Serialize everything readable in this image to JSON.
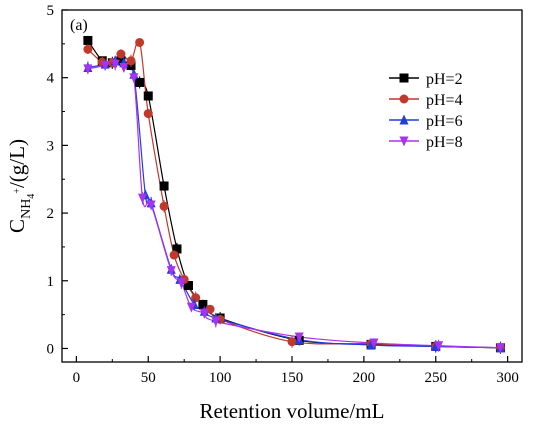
{
  "chart_data": {
    "type": "scatter",
    "panel_label": "(a)",
    "xlabel": "Retention volume/mL",
    "ylabel": {
      "base": "C",
      "sub": "NH",
      "subsub": "4",
      "sup": "+",
      "unit": "/(g/L)"
    },
    "xlim": [
      -10,
      310
    ],
    "ylim": [
      -0.2,
      5
    ],
    "xticks": [
      0,
      50,
      100,
      150,
      200,
      250,
      300
    ],
    "yticks": [
      0,
      1,
      2,
      3,
      4,
      5
    ],
    "grid": false,
    "legend_position": "right",
    "series": [
      {
        "name": "pH=2",
        "color": "#000000",
        "marker": "square",
        "x": [
          8,
          18,
          25,
          31,
          38,
          44,
          50,
          61,
          70,
          78,
          88,
          100,
          155,
          205,
          250,
          295
        ],
        "y": [
          4.55,
          4.25,
          4.22,
          4.25,
          4.18,
          3.93,
          3.73,
          2.4,
          1.47,
          0.93,
          0.65,
          0.45,
          0.12,
          0.06,
          0.03,
          0.01
        ]
      },
      {
        "name": "pH=4",
        "color": "#c0392b",
        "marker": "circle",
        "x": [
          8,
          18,
          25,
          31,
          38,
          44,
          50,
          61,
          68,
          75,
          83,
          93,
          100,
          150,
          205,
          250,
          295
        ],
        "y": [
          4.42,
          4.23,
          4.22,
          4.35,
          4.25,
          4.52,
          3.47,
          2.1,
          1.38,
          1.02,
          0.75,
          0.58,
          0.43,
          0.1,
          0.07,
          0.03,
          0.01
        ]
      },
      {
        "name": "pH=6",
        "color": "#1f3de0",
        "marker": "triangle",
        "x": [
          8,
          20,
          27,
          33,
          40,
          48,
          52,
          66,
          72,
          82,
          89,
          97,
          155,
          205,
          250,
          295
        ],
        "y": [
          4.15,
          4.2,
          4.25,
          4.22,
          4.05,
          2.27,
          2.15,
          1.17,
          1.02,
          0.65,
          0.55,
          0.45,
          0.13,
          0.05,
          0.03,
          0.01
        ]
      },
      {
        "name": "pH=8",
        "color": "#a832f0",
        "marker": "triangle-down",
        "x": [
          8,
          20,
          27,
          33,
          40,
          46,
          52,
          66,
          73,
          80,
          89,
          97,
          155,
          207,
          252,
          295
        ],
        "y": [
          4.13,
          4.18,
          4.2,
          4.15,
          4.0,
          2.22,
          2.12,
          1.15,
          0.97,
          0.61,
          0.52,
          0.4,
          0.17,
          0.08,
          0.04,
          0.01
        ]
      }
    ]
  }
}
